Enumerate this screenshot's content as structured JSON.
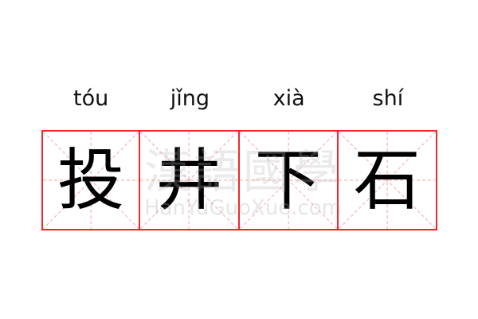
{
  "idiom": {
    "characters": [
      "投",
      "井",
      "下",
      "石"
    ],
    "pinyin": [
      "tóu",
      "jǐng",
      "xià",
      "shí"
    ]
  },
  "watermark": {
    "logo_text": "漢語國學",
    "site": "HanYuGuoXue.com"
  },
  "colors": {
    "grid_border": "#f5262a",
    "guide_lines": "#f8a5a5"
  }
}
